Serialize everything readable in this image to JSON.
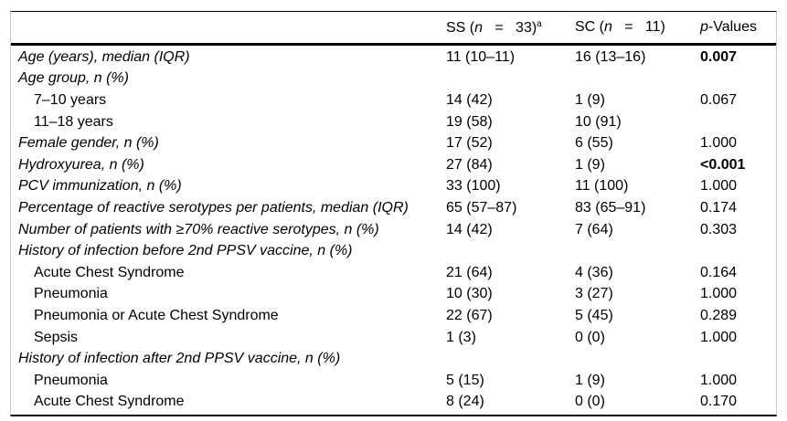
{
  "header": {
    "ss": {
      "prefix": "SS (",
      "n": "n",
      "eq": "   =   ",
      "close": "33)",
      "sup": "a"
    },
    "sc": {
      "prefix": "SC (",
      "n": "n",
      "eq": "   =   ",
      "close": "11)",
      "sup": ""
    },
    "p": {
      "italic": "p",
      "rest": "-Values"
    }
  },
  "rows": [
    {
      "label": "Age (years), median (IQR)",
      "ss": "11 (10–11)",
      "sc": "16 (13–16)",
      "p": "0.007"
    },
    {
      "label": "Age group, n (%)",
      "ss": "",
      "sc": "",
      "p": ""
    },
    {
      "label": "7–10 years",
      "ss": "14 (42)",
      "sc": "1 (9)",
      "p": "0.067"
    },
    {
      "label": "11–18 years",
      "ss": "19 (58)",
      "sc": "10 (91)",
      "p": ""
    },
    {
      "label": "Female gender, n (%)",
      "ss": "17 (52)",
      "sc": "6 (55)",
      "p": "1.000"
    },
    {
      "label": "Hydroxyurea, n (%)",
      "ss": "27 (84)",
      "sc": "1 (9)",
      "p": "<0.001"
    },
    {
      "label": "PCV immunization, n (%)",
      "ss": "33 (100)",
      "sc": "11 (100)",
      "p": "1.000"
    },
    {
      "label": "Percentage of reactive serotypes per patients, median (IQR)",
      "ss": "65 (57–87)",
      "sc": "83 (65–91)",
      "p": "0.174"
    },
    {
      "label": "Number of patients with ≥70% reactive serotypes, n (%)",
      "ss": "14 (42)",
      "sc": "7 (64)",
      "p": "0.303"
    },
    {
      "label": "History of infection before 2nd PPSV vaccine, n (%)",
      "ss": "",
      "sc": "",
      "p": ""
    },
    {
      "label": "Acute Chest Syndrome",
      "ss": "21 (64)",
      "sc": "4 (36)",
      "p": "0.164"
    },
    {
      "label": "Pneumonia",
      "ss": "10 (30)",
      "sc": "3 (27)",
      "p": "1.000"
    },
    {
      "label": "Pneumonia or Acute Chest Syndrome",
      "ss": "22 (67)",
      "sc": "5 (45)",
      "p": "0.289"
    },
    {
      "label": "Sepsis",
      "ss": "1 (3)",
      "sc": "0 (0)",
      "p": "1.000"
    },
    {
      "label": "History of infection after 2nd PPSV vaccine, n (%)",
      "ss": "",
      "sc": "",
      "p": ""
    },
    {
      "label": "Pneumonia",
      "ss": "5 (15)",
      "sc": "1 (9)",
      "p": "1.000"
    },
    {
      "label": "Acute Chest Syndrome",
      "ss": "8 (24)",
      "sc": "0 (0)",
      "p": "0.170"
    }
  ]
}
